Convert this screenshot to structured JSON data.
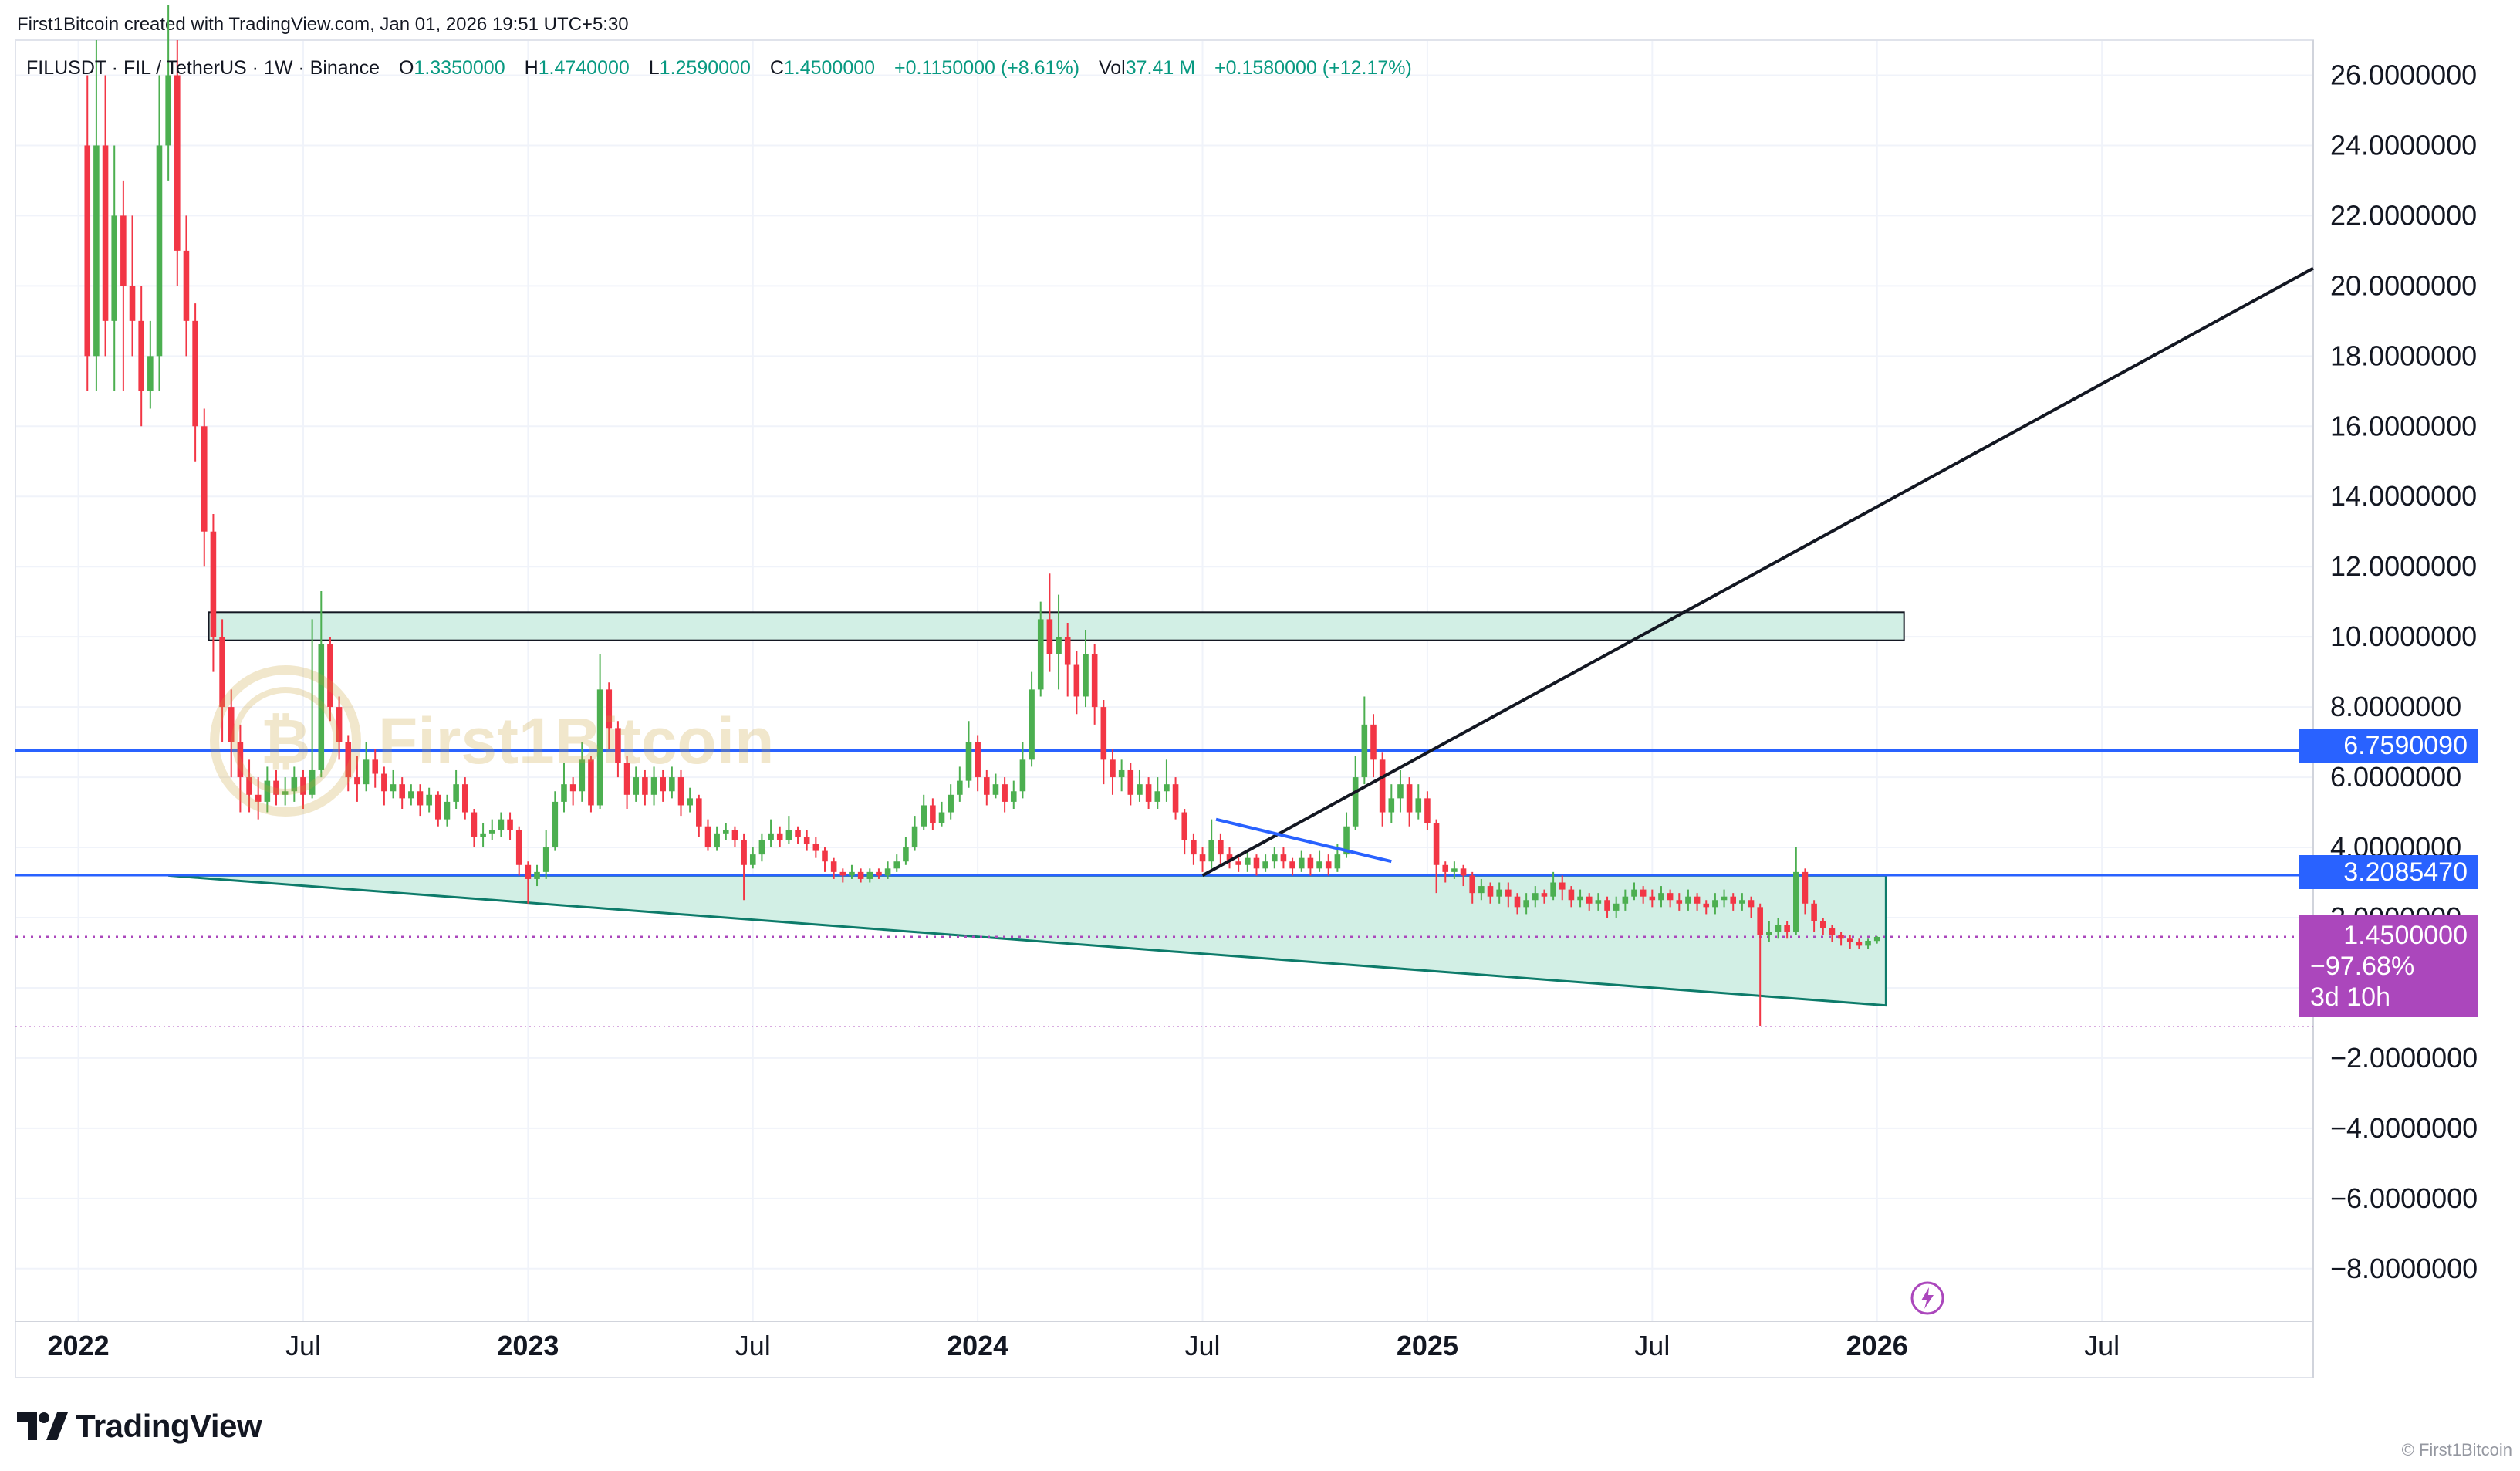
{
  "caption": "First1Bitcoin created with TradingView.com, Jan 01, 2026 19:51 UTC+5:30",
  "legend": {
    "symbol": "FILUSDT · FIL / TetherUS · 1W · Binance",
    "open_label": "O",
    "open": "1.3350000",
    "high_label": "H",
    "high": "1.4740000",
    "low_label": "L",
    "low": "1.2590000",
    "close_label": "C",
    "close": "1.4500000",
    "change": "+0.1150000 (+8.61%)",
    "vol_label": "Vol",
    "vol": "37.41 M",
    "vol_change": "+0.1580000 (+12.17%)"
  },
  "price_tags": {
    "resistance": "6.7590090",
    "support": "3.2085470",
    "last_price": "1.4500000",
    "last_change": "−97.68%",
    "countdown": "3d 10h"
  },
  "watermark_text": "First1Bitcoin",
  "brand": "TradingView",
  "credit": "© First1Bitcoin",
  "colors": {
    "up": "#4caf50",
    "down": "#f23645",
    "support_line": "#2962ff",
    "zone_fill": "#d2efe5",
    "zone_border": "#0d7b6a",
    "last_price": "#ab47bc",
    "grid": "#f0f3fa"
  },
  "chart_data": {
    "type": "candlestick",
    "symbol": "FILUSDT",
    "interval": "1W",
    "y_ticks": [
      "26.0000000",
      "24.0000000",
      "22.0000000",
      "20.0000000",
      "18.0000000",
      "16.0000000",
      "14.0000000",
      "12.0000000",
      "10.0000000",
      "8.0000000",
      "6.0000000",
      "4.0000000",
      "2.0000000",
      "−2.0000000",
      "−4.0000000",
      "−6.0000000",
      "−8.0000000"
    ],
    "y_tick_values": [
      26,
      24,
      22,
      20,
      18,
      16,
      14,
      12,
      10,
      8,
      6,
      4,
      2,
      -2,
      -4,
      -6,
      -8
    ],
    "x_ticks": [
      {
        "label": "2022",
        "bold": true,
        "t": 0
      },
      {
        "label": "Jul",
        "bold": false,
        "t": 0.5
      },
      {
        "label": "2023",
        "bold": true,
        "t": 1
      },
      {
        "label": "Jul",
        "bold": false,
        "t": 1.5
      },
      {
        "label": "2024",
        "bold": true,
        "t": 2
      },
      {
        "label": "Jul",
        "bold": false,
        "t": 2.5
      },
      {
        "label": "2025",
        "bold": true,
        "t": 3
      },
      {
        "label": "Jul",
        "bold": false,
        "t": 3.5
      },
      {
        "label": "2026",
        "bold": true,
        "t": 4
      },
      {
        "label": "Jul",
        "bold": false,
        "t": 4.5
      }
    ],
    "ylim": [
      -9.5,
      27
    ],
    "xlim_years": [
      -0.14,
      4.97
    ],
    "horizontal_levels": [
      6.759009,
      3.208547
    ],
    "last_price": 1.45,
    "low_marker": -1.1,
    "resistance_zone": {
      "t0": 0.29,
      "t1": 4.06,
      "y0": 9.9,
      "y1": 10.7
    },
    "wedge_zone": {
      "t0": 0.2,
      "t1": 4.02,
      "top": 3.2,
      "bottom_start": 3.2,
      "bottom_end": -0.5
    },
    "trendline": {
      "t0": 2.5,
      "y0": 3.2,
      "t1": 4.97,
      "y1": 20.5
    },
    "blue_trendline": {
      "t0": 2.53,
      "y0": 4.8,
      "t1": 2.92,
      "y1": 3.6
    },
    "candles": [
      [
        0.02,
        24,
        18,
        26,
        17
      ],
      [
        0.04,
        18,
        24,
        27,
        17
      ],
      [
        0.06,
        24,
        19,
        26,
        18
      ],
      [
        0.08,
        19,
        22,
        24,
        17
      ],
      [
        0.1,
        22,
        20,
        23,
        17
      ],
      [
        0.12,
        20,
        19,
        22,
        18
      ],
      [
        0.14,
        19,
        17,
        20,
        16
      ],
      [
        0.16,
        17,
        18,
        19,
        16.5
      ],
      [
        0.18,
        18,
        24,
        26,
        17
      ],
      [
        0.2,
        24,
        26,
        28,
        23
      ],
      [
        0.22,
        26,
        21,
        27,
        20
      ],
      [
        0.24,
        21,
        19,
        22,
        18
      ],
      [
        0.26,
        19,
        16,
        19.5,
        15
      ],
      [
        0.28,
        16,
        13,
        16.5,
        12
      ],
      [
        0.3,
        13,
        10,
        13.5,
        9
      ],
      [
        0.32,
        10,
        8,
        10.5,
        7
      ],
      [
        0.34,
        8,
        7,
        8.5,
        6
      ],
      [
        0.36,
        7,
        6,
        7.5,
        5
      ],
      [
        0.38,
        6,
        5.5,
        6.5,
        5
      ],
      [
        0.4,
        5.5,
        5.3,
        6,
        4.8
      ],
      [
        0.42,
        5.3,
        5.9,
        6.3,
        5
      ],
      [
        0.44,
        5.9,
        5.5,
        6.2,
        5.2
      ],
      [
        0.46,
        5.5,
        5.6,
        6,
        5.2
      ],
      [
        0.48,
        5.6,
        6,
        6.3,
        5.3
      ],
      [
        0.5,
        6,
        5.5,
        6.2,
        5.1
      ],
      [
        0.52,
        5.5,
        6.2,
        10.5,
        5.4
      ],
      [
        0.54,
        6.2,
        9.8,
        11.3,
        6
      ],
      [
        0.56,
        9.8,
        8,
        10,
        7.6
      ],
      [
        0.58,
        8,
        7,
        8.3,
        6.5
      ],
      [
        0.6,
        7,
        6,
        7.2,
        5.6
      ],
      [
        0.62,
        6,
        5.8,
        6.6,
        5.3
      ],
      [
        0.64,
        5.8,
        6.5,
        7,
        5.6
      ],
      [
        0.66,
        6.5,
        6.1,
        6.8,
        5.7
      ],
      [
        0.68,
        6.1,
        5.6,
        6.3,
        5.2
      ],
      [
        0.7,
        5.6,
        5.8,
        6.2,
        5.4
      ],
      [
        0.72,
        5.8,
        5.4,
        6,
        5.1
      ],
      [
        0.74,
        5.4,
        5.6,
        5.8,
        5.2
      ],
      [
        0.76,
        5.6,
        5.2,
        5.8,
        4.9
      ],
      [
        0.78,
        5.2,
        5.5,
        5.7,
        5
      ],
      [
        0.8,
        5.5,
        4.8,
        5.6,
        4.6
      ],
      [
        0.82,
        4.8,
        5.3,
        5.5,
        4.6
      ],
      [
        0.84,
        5.3,
        5.8,
        6.2,
        5.1
      ],
      [
        0.86,
        5.8,
        5,
        6,
        4.8
      ],
      [
        0.88,
        5,
        4.3,
        5.1,
        4
      ],
      [
        0.9,
        4.3,
        4.4,
        4.7,
        4
      ],
      [
        0.92,
        4.4,
        4.5,
        4.8,
        4.2
      ],
      [
        0.94,
        4.5,
        4.8,
        5,
        4.3
      ],
      [
        0.96,
        4.8,
        4.5,
        5,
        4.2
      ],
      [
        0.98,
        4.5,
        3.5,
        4.6,
        3.2
      ],
      [
        1.0,
        3.5,
        3.1,
        3.6,
        2.4
      ],
      [
        1.02,
        3.1,
        3.3,
        3.5,
        2.9
      ],
      [
        1.04,
        3.3,
        4,
        4.5,
        3.1
      ],
      [
        1.06,
        4,
        5.3,
        5.6,
        3.9
      ],
      [
        1.08,
        5.3,
        5.8,
        6.4,
        5
      ],
      [
        1.1,
        5.8,
        5.6,
        6,
        5.2
      ],
      [
        1.12,
        5.6,
        6.5,
        7,
        5.3
      ],
      [
        1.14,
        6.5,
        5.2,
        6.6,
        5
      ],
      [
        1.16,
        5.2,
        8.5,
        9.5,
        5.1
      ],
      [
        1.18,
        8.5,
        7.4,
        8.7,
        6.8
      ],
      [
        1.2,
        7.4,
        6.4,
        7.6,
        6
      ],
      [
        1.22,
        6.4,
        5.5,
        6.6,
        5.1
      ],
      [
        1.24,
        5.5,
        6,
        6.3,
        5.3
      ],
      [
        1.26,
        6,
        5.5,
        6.2,
        5.2
      ],
      [
        1.28,
        5.5,
        6,
        6.3,
        5.2
      ],
      [
        1.3,
        6,
        5.6,
        6.2,
        5.3
      ],
      [
        1.32,
        5.6,
        6,
        6.3,
        5.4
      ],
      [
        1.34,
        6,
        5.2,
        6.2,
        4.9
      ],
      [
        1.36,
        5.2,
        5.4,
        5.7,
        5
      ],
      [
        1.38,
        5.4,
        4.6,
        5.5,
        4.3
      ],
      [
        1.4,
        4.6,
        4,
        4.8,
        3.9
      ],
      [
        1.42,
        4,
        4.4,
        4.6,
        3.9
      ],
      [
        1.44,
        4.4,
        4.5,
        4.7,
        4.2
      ],
      [
        1.46,
        4.5,
        4.2,
        4.6,
        4
      ],
      [
        1.48,
        4.2,
        3.5,
        4.4,
        2.5
      ],
      [
        1.5,
        3.5,
        3.8,
        4,
        3.4
      ],
      [
        1.52,
        3.8,
        4.2,
        4.4,
        3.6
      ],
      [
        1.54,
        4.2,
        4.4,
        4.8,
        4
      ],
      [
        1.56,
        4.4,
        4.2,
        4.6,
        4
      ],
      [
        1.58,
        4.2,
        4.5,
        4.9,
        4.1
      ],
      [
        1.6,
        4.5,
        4.3,
        4.6,
        4.1
      ],
      [
        1.62,
        4.3,
        4.1,
        4.5,
        3.9
      ],
      [
        1.64,
        4.1,
        3.9,
        4.3,
        3.7
      ],
      [
        1.66,
        3.9,
        3.6,
        4,
        3.3
      ],
      [
        1.68,
        3.6,
        3.3,
        3.7,
        3.1
      ],
      [
        1.7,
        3.3,
        3.2,
        3.4,
        3
      ],
      [
        1.72,
        3.2,
        3.3,
        3.5,
        3.1
      ],
      [
        1.74,
        3.3,
        3.1,
        3.4,
        3
      ],
      [
        1.76,
        3.1,
        3.3,
        3.4,
        3
      ],
      [
        1.78,
        3.3,
        3.2,
        3.4,
        3.1
      ],
      [
        1.8,
        3.2,
        3.4,
        3.6,
        3.1
      ],
      [
        1.82,
        3.4,
        3.6,
        3.8,
        3.3
      ],
      [
        1.84,
        3.6,
        4,
        4.3,
        3.5
      ],
      [
        1.86,
        4,
        4.6,
        4.9,
        3.9
      ],
      [
        1.88,
        4.6,
        5.2,
        5.5,
        4.5
      ],
      [
        1.9,
        5.2,
        4.7,
        5.4,
        4.5
      ],
      [
        1.92,
        4.7,
        5,
        5.3,
        4.6
      ],
      [
        1.94,
        5,
        5.5,
        5.8,
        4.8
      ],
      [
        1.96,
        5.5,
        5.9,
        6.3,
        5.3
      ],
      [
        1.98,
        5.9,
        7,
        7.6,
        5.7
      ],
      [
        2.0,
        7,
        6,
        7.2,
        5.6
      ],
      [
        2.02,
        6,
        5.5,
        6.2,
        5.2
      ],
      [
        2.04,
        5.5,
        5.8,
        6.1,
        5.4
      ],
      [
        2.06,
        5.8,
        5.3,
        6,
        5
      ],
      [
        2.08,
        5.3,
        5.6,
        5.9,
        5.1
      ],
      [
        2.1,
        5.6,
        6.5,
        7,
        5.4
      ],
      [
        2.12,
        6.5,
        8.5,
        9,
        6.3
      ],
      [
        2.14,
        8.5,
        10.5,
        11,
        8.3
      ],
      [
        2.16,
        10.5,
        9.5,
        11.8,
        9
      ],
      [
        2.18,
        9.5,
        10,
        11.2,
        8.5
      ],
      [
        2.2,
        10,
        9.2,
        10.4,
        8.3
      ],
      [
        2.22,
        9.2,
        8.3,
        9.6,
        7.8
      ],
      [
        2.24,
        8.3,
        9.5,
        10.2,
        8
      ],
      [
        2.26,
        9.5,
        8,
        9.8,
        7.5
      ],
      [
        2.28,
        8,
        6.5,
        8.2,
        5.8
      ],
      [
        2.3,
        6.5,
        6,
        6.8,
        5.5
      ],
      [
        2.32,
        6,
        6.2,
        6.5,
        5.6
      ],
      [
        2.34,
        6.2,
        5.5,
        6.4,
        5.2
      ],
      [
        2.36,
        5.5,
        5.8,
        6.2,
        5.3
      ],
      [
        2.38,
        5.8,
        5.3,
        6,
        5.1
      ],
      [
        2.4,
        5.3,
        5.6,
        6,
        5.1
      ],
      [
        2.42,
        5.6,
        5.8,
        6.5,
        5.3
      ],
      [
        2.44,
        5.8,
        5,
        6,
        4.8
      ],
      [
        2.46,
        5,
        4.2,
        5.1,
        3.8
      ],
      [
        2.48,
        4.2,
        3.8,
        4.4,
        3.5
      ],
      [
        2.5,
        3.8,
        3.6,
        4,
        3.3
      ],
      [
        2.52,
        3.6,
        4.2,
        4.8,
        3.4
      ],
      [
        2.54,
        4.2,
        3.8,
        4.4,
        3.5
      ],
      [
        2.56,
        3.8,
        3.6,
        4,
        3.4
      ],
      [
        2.58,
        3.6,
        3.5,
        3.8,
        3.3
      ],
      [
        2.6,
        3.5,
        3.7,
        3.9,
        3.3
      ],
      [
        2.62,
        3.7,
        3.4,
        3.8,
        3.2
      ],
      [
        2.64,
        3.4,
        3.6,
        3.8,
        3.3
      ],
      [
        2.66,
        3.6,
        3.8,
        4,
        3.4
      ],
      [
        2.68,
        3.8,
        3.6,
        4,
        3.4
      ],
      [
        2.7,
        3.6,
        3.4,
        3.7,
        3.2
      ],
      [
        2.72,
        3.4,
        3.7,
        3.9,
        3.3
      ],
      [
        2.74,
        3.7,
        3.4,
        3.8,
        3.2
      ],
      [
        2.76,
        3.4,
        3.6,
        3.9,
        3.3
      ],
      [
        2.78,
        3.6,
        3.4,
        3.8,
        3.2
      ],
      [
        2.8,
        3.4,
        3.8,
        4.1,
        3.3
      ],
      [
        2.82,
        3.8,
        4.6,
        5,
        3.7
      ],
      [
        2.84,
        4.6,
        6,
        6.6,
        4.5
      ],
      [
        2.86,
        6,
        7.5,
        8.3,
        5.8
      ],
      [
        2.88,
        7.5,
        6.5,
        7.8,
        6
      ],
      [
        2.9,
        6.5,
        5,
        6.7,
        4.6
      ],
      [
        2.92,
        5,
        5.4,
        5.8,
        4.7
      ],
      [
        2.94,
        5.4,
        5.8,
        6.2,
        5
      ],
      [
        2.96,
        5.8,
        5,
        6,
        4.6
      ],
      [
        2.98,
        5,
        5.4,
        5.8,
        4.8
      ],
      [
        3.0,
        5.4,
        4.7,
        5.6,
        4.5
      ],
      [
        3.02,
        4.7,
        3.5,
        4.8,
        2.7
      ],
      [
        3.04,
        3.5,
        3.3,
        3.6,
        3
      ],
      [
        3.06,
        3.3,
        3.4,
        3.6,
        3.1
      ],
      [
        3.08,
        3.4,
        3.2,
        3.5,
        2.9
      ],
      [
        3.1,
        3.2,
        2.7,
        3.3,
        2.4
      ],
      [
        3.12,
        2.7,
        2.9,
        3.1,
        2.5
      ],
      [
        3.14,
        2.9,
        2.6,
        3,
        2.4
      ],
      [
        3.16,
        2.6,
        2.8,
        3,
        2.4
      ],
      [
        3.18,
        2.8,
        2.6,
        3,
        2.3
      ],
      [
        3.2,
        2.6,
        2.3,
        2.7,
        2.1
      ],
      [
        3.22,
        2.3,
        2.5,
        2.7,
        2.1
      ],
      [
        3.24,
        2.5,
        2.7,
        2.9,
        2.3
      ],
      [
        3.26,
        2.7,
        2.6,
        2.8,
        2.4
      ],
      [
        3.28,
        2.6,
        3,
        3.3,
        2.5
      ],
      [
        3.3,
        3,
        2.8,
        3.2,
        2.5
      ],
      [
        3.32,
        2.8,
        2.5,
        2.9,
        2.3
      ],
      [
        3.34,
        2.5,
        2.6,
        2.8,
        2.3
      ],
      [
        3.36,
        2.6,
        2.4,
        2.7,
        2.2
      ],
      [
        3.38,
        2.4,
        2.5,
        2.7,
        2.2
      ],
      [
        3.4,
        2.5,
        2.2,
        2.6,
        2
      ],
      [
        3.42,
        2.2,
        2.4,
        2.6,
        2
      ],
      [
        3.44,
        2.4,
        2.6,
        2.8,
        2.2
      ],
      [
        3.46,
        2.6,
        2.8,
        3,
        2.5
      ],
      [
        3.48,
        2.8,
        2.6,
        2.9,
        2.4
      ],
      [
        3.5,
        2.6,
        2.5,
        2.8,
        2.3
      ],
      [
        3.52,
        2.5,
        2.7,
        2.9,
        2.3
      ],
      [
        3.54,
        2.7,
        2.5,
        2.8,
        2.3
      ],
      [
        3.56,
        2.5,
        2.4,
        2.7,
        2.2
      ],
      [
        3.58,
        2.4,
        2.6,
        2.8,
        2.2
      ],
      [
        3.6,
        2.6,
        2.4,
        2.7,
        2.2
      ],
      [
        3.62,
        2.4,
        2.3,
        2.5,
        2.1
      ],
      [
        3.64,
        2.3,
        2.5,
        2.7,
        2.1
      ],
      [
        3.66,
        2.5,
        2.6,
        2.8,
        2.3
      ],
      [
        3.68,
        2.6,
        2.4,
        2.7,
        2.2
      ],
      [
        3.7,
        2.4,
        2.5,
        2.7,
        2.2
      ],
      [
        3.72,
        2.5,
        2.3,
        2.6,
        2
      ],
      [
        3.74,
        2.3,
        1.5,
        2.4,
        -1.1
      ],
      [
        3.76,
        1.5,
        1.6,
        1.9,
        1.3
      ],
      [
        3.78,
        1.6,
        1.8,
        2,
        1.4
      ],
      [
        3.8,
        1.8,
        1.6,
        1.9,
        1.4
      ],
      [
        3.82,
        1.6,
        3.3,
        4,
        1.5
      ],
      [
        3.84,
        3.3,
        2.4,
        3.4,
        2.1
      ],
      [
        3.86,
        2.4,
        1.9,
        2.5,
        1.6
      ],
      [
        3.88,
        1.9,
        1.7,
        2,
        1.5
      ],
      [
        3.9,
        1.7,
        1.5,
        1.8,
        1.3
      ],
      [
        3.92,
        1.5,
        1.4,
        1.6,
        1.2
      ],
      [
        3.94,
        1.4,
        1.3,
        1.5,
        1.1
      ],
      [
        3.96,
        1.3,
        1.2,
        1.4,
        1.1
      ],
      [
        3.98,
        1.2,
        1.34,
        1.4,
        1.1
      ],
      [
        4.0,
        1.335,
        1.45,
        1.474,
        1.259
      ]
    ]
  }
}
